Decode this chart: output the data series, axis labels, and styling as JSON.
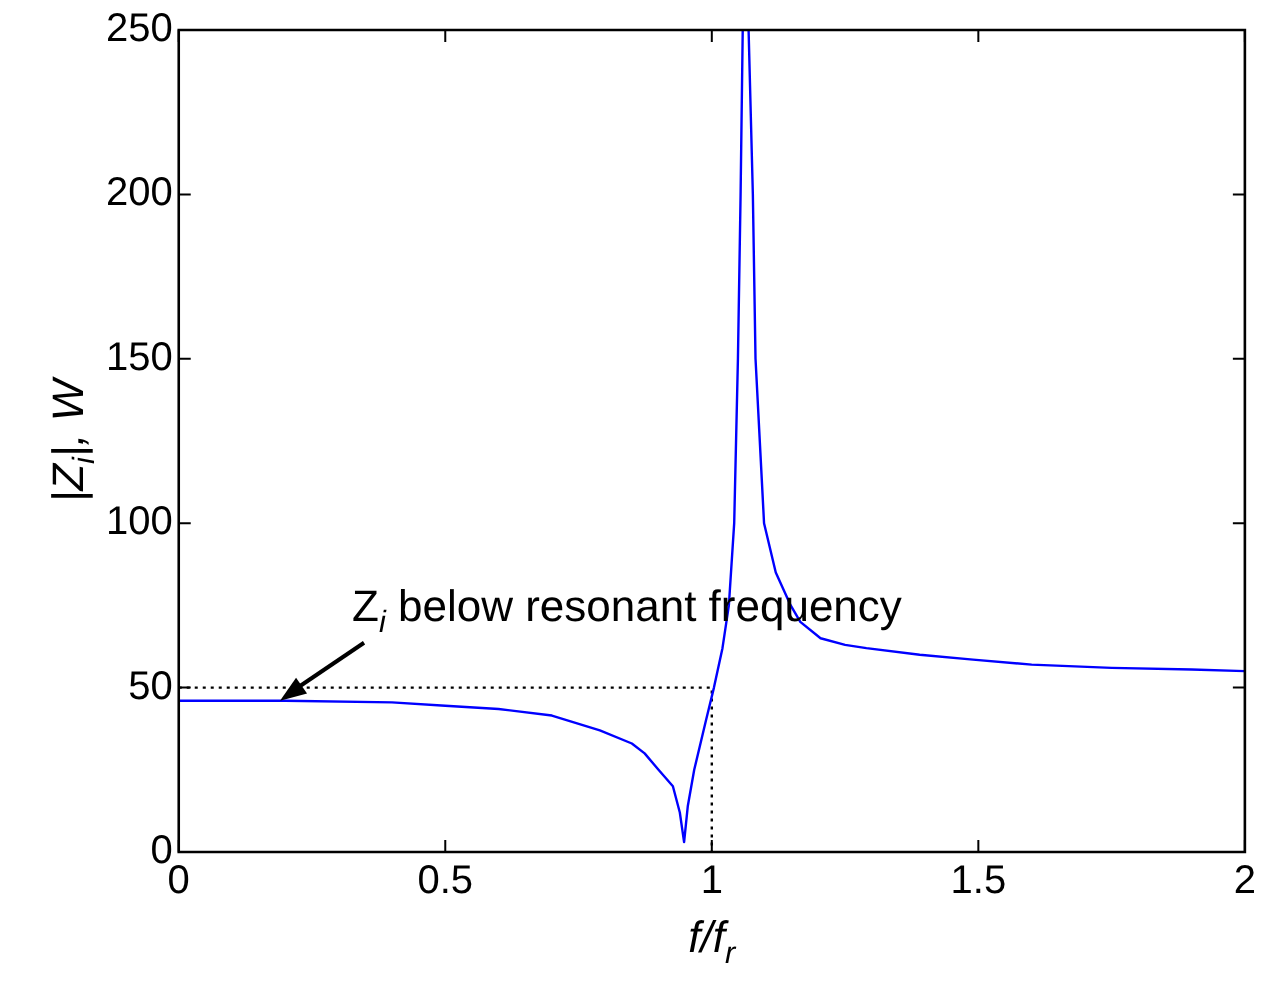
{
  "chart_data": {
    "type": "line",
    "xlabel": "f/f$_{r}$",
    "ylabel": "|Z$_{i}$|, W",
    "xlim": [
      0,
      2
    ],
    "ylim": [
      0,
      250
    ],
    "xticks": [
      0,
      0.5,
      1,
      1.5,
      2
    ],
    "yticks": [
      0,
      50,
      100,
      150,
      200,
      250
    ],
    "grid": false,
    "legend": false,
    "marker": "none",
    "annotations": [
      {
        "text": "Z$_{i}$ below resonant frequency",
        "x": 0.19,
        "y": 46
      }
    ],
    "series": [
      {
        "color": "#0000ff",
        "x": [
          0,
          0.2,
          0.4,
          0.5,
          0.6,
          0.7,
          0.79,
          0.85,
          0.874,
          0.9,
          0.927,
          0.94,
          0.948,
          0.955,
          0.967,
          0.989,
          1.004,
          1.02,
          1.032,
          1.042,
          1.049,
          1.054,
          1.058,
          1.064,
          1.069,
          1.077,
          1.082,
          1.098,
          1.12,
          1.148,
          1.166,
          1.204,
          1.25,
          1.29,
          1.39,
          1.49,
          1.6,
          1.75,
          1.9,
          2
        ],
        "values": [
          46,
          46,
          45.5,
          44.5,
          43.5,
          41.5,
          37,
          33,
          30,
          25,
          20,
          12,
          3,
          14,
          25,
          40,
          50,
          62,
          75,
          100,
          150,
          200,
          250,
          null,
          250,
          200,
          150,
          100,
          85,
          75,
          70,
          65,
          63,
          62,
          60,
          58.5,
          57,
          56,
          55.5,
          55
        ]
      },
      {
        "color": "#000000",
        "line_style": "dotted",
        "x": [
          0,
          1,
          1
        ],
        "values": [
          50,
          50,
          0
        ]
      }
    ]
  }
}
